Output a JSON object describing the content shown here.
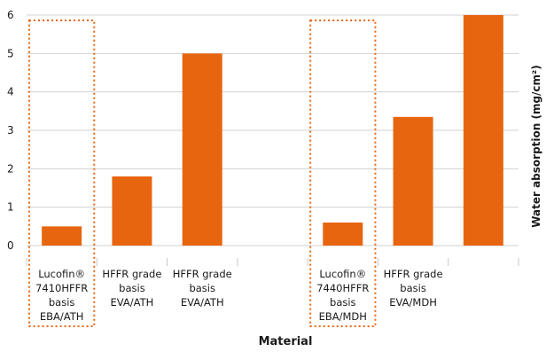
{
  "chart_data": {
    "type": "bar",
    "x_label": "Material",
    "y_label": "Water absorption (mg/cm²)",
    "y_ticks": [
      "0",
      "1",
      "2",
      "3",
      "4",
      "5",
      "6"
    ],
    "ylim": [
      0,
      6
    ],
    "grid": true,
    "categories": [
      [
        "Lucofin®",
        "7410HFFR",
        "basis",
        "EBA/ATH"
      ],
      [
        "HFFR grade",
        "basis",
        "EVA/ATH"
      ],
      [
        "HFFR grade",
        "basis",
        "EVA/ATH"
      ],
      [],
      [
        "Lucofin®",
        "7440HFFR",
        "basis",
        "EBA/MDH"
      ],
      [
        "HFFR grade",
        "basis",
        "EVA/MDH"
      ],
      []
    ],
    "values": [
      0.5,
      1.8,
      5.0,
      null,
      0.6,
      3.35,
      6.0
    ],
    "highlighted": [
      0,
      4
    ],
    "colors": {
      "bar": "#e8650f",
      "highlight_border": "#e8650f",
      "grid": "#d0d0d0",
      "text": "#1a1a1a"
    }
  }
}
